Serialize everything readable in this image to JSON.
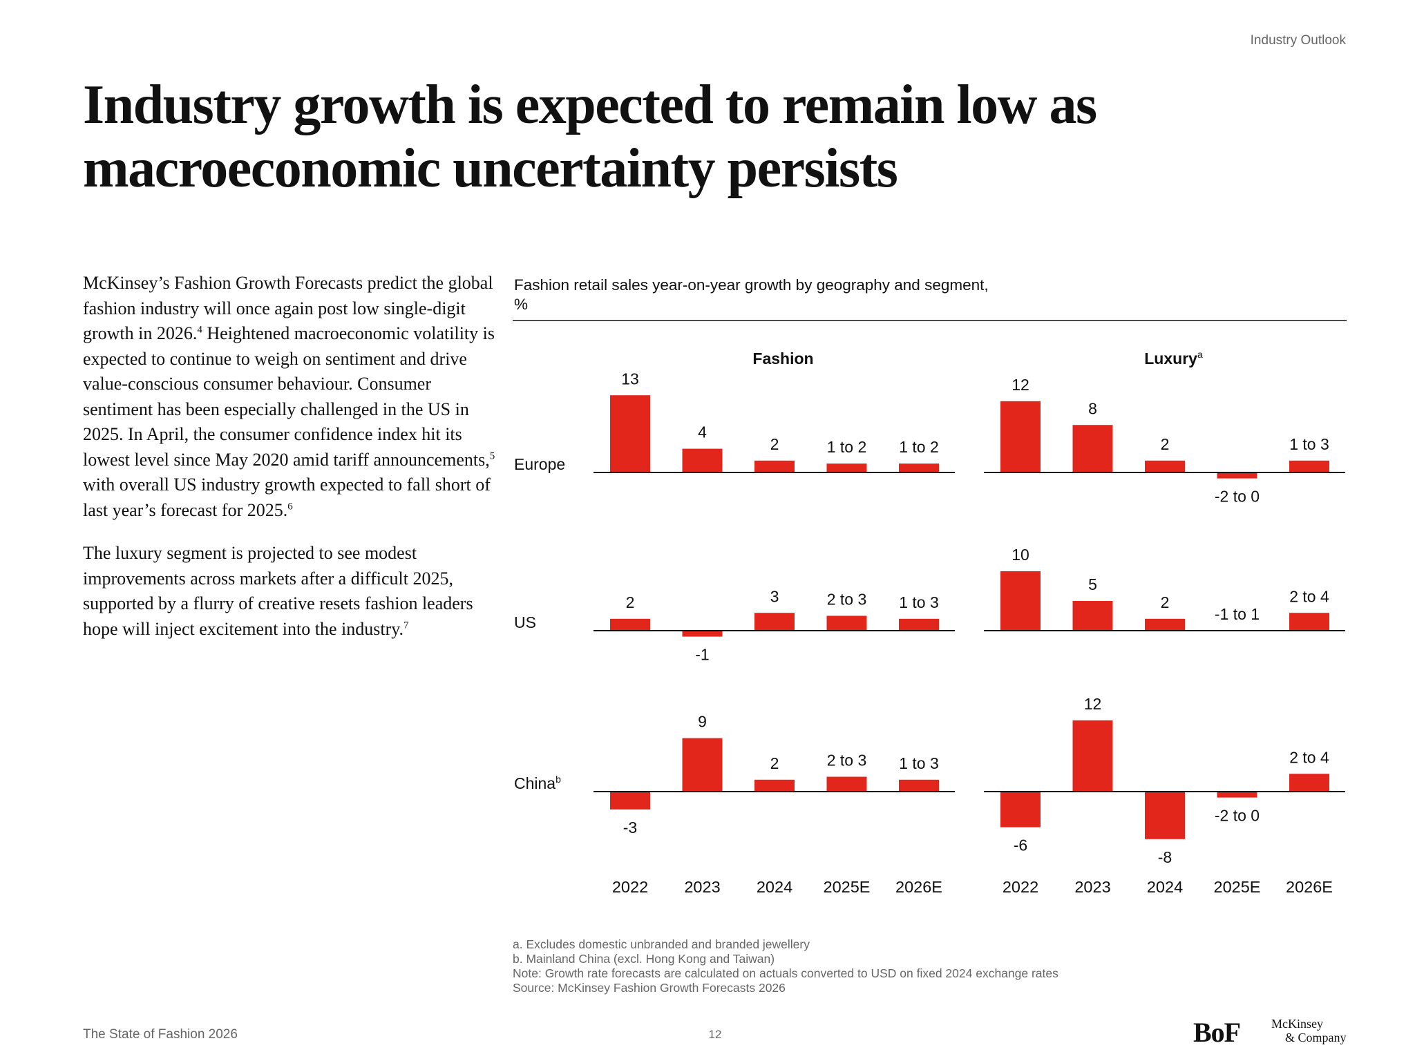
{
  "header": {
    "section": "Industry Outlook"
  },
  "title": [
    "Industry growth is expected to remain low as",
    "macroeconomic uncertainty persists"
  ],
  "body": {
    "paragraphs": [
      [
        {
          "text": "McKinsey’s Fashion Growth Forecasts predict the global fashion industry will once again post low single-digit growth in 2026."
        },
        {
          "sup": "4"
        },
        {
          "text": " Heightened macroeconomic volatility is expected to continue to weigh on sentiment and drive value-conscious consumer behaviour. Consumer sentiment has been especially challenged in the US in 2025. In April, the consumer confidence index hit its lowest level since May 2020 amid tariff announcements,"
        },
        {
          "sup": "5"
        },
        {
          "text": " with overall US industry growth expected to fall short of last year’s forecast for 2025."
        },
        {
          "sup": "6"
        }
      ],
      [
        {
          "text": "The luxury segment is projected to see modest improvements across markets after a difficult 2025, supported by a flurry of creative resets fashion leaders hope will inject excitement into the industry."
        },
        {
          "sup": "7"
        }
      ]
    ]
  },
  "chart_data": {
    "type": "bar",
    "title": "Fashion retail sales year-on-year growth by geography and segment,",
    "subtitle": "%",
    "color": "#e3261b",
    "rows": [
      {
        "label": "Europe"
      },
      {
        "label": "US"
      },
      {
        "label": "China",
        "note": "b"
      }
    ],
    "panels": [
      {
        "title": "Fashion",
        "categories": [
          "2022",
          "2023",
          "2024",
          "2025E",
          "2026E"
        ],
        "series": [
          {
            "values": [
              13,
              4,
              2,
              1.5,
              1.5
            ],
            "value_labels": [
              "13",
              "4",
              "2",
              "1 to 2",
              "1 to 2"
            ]
          },
          {
            "values": [
              2,
              -1,
              3,
              2.5,
              2
            ],
            "value_labels": [
              "2",
              "-1",
              "3",
              "2 to 3",
              "1 to 3"
            ]
          },
          {
            "values": [
              -3,
              9,
              2,
              2.5,
              2
            ],
            "value_labels": [
              "-3",
              "9",
              "2",
              "2 to 3",
              "1 to 3"
            ]
          }
        ]
      },
      {
        "title": "Luxury",
        "note": "a",
        "categories": [
          "2022",
          "2023",
          "2024",
          "2025E",
          "2026E"
        ],
        "series": [
          {
            "values": [
              12,
              8,
              2,
              -1,
              2
            ],
            "value_labels": [
              "12",
              "8",
              "2",
              "-2 to 0",
              "1 to 3"
            ]
          },
          {
            "values": [
              10,
              5,
              2,
              0,
              3
            ],
            "value_labels": [
              "10",
              "5",
              "2",
              "-1 to 1",
              "2 to 4"
            ]
          },
          {
            "values": [
              -6,
              12,
              -8,
              -1,
              3
            ],
            "value_labels": [
              "-6",
              "12",
              "-8",
              "-2 to 0",
              "2 to 4"
            ]
          }
        ]
      }
    ]
  },
  "notes": [
    "a. Excludes domestic unbranded and branded jewellery",
    "b. Mainland China (excl. Hong Kong and Taiwan)",
    "Note: Growth rate forecasts are calculated on actuals converted to USD on fixed 2024 exchange rates",
    "Source: McKinsey Fashion Growth Forecasts 2026"
  ],
  "footer": {
    "publication": "The State of Fashion 2026",
    "page": 12,
    "logos": [
      "BoF",
      "McKinsey",
      "& Company"
    ]
  }
}
